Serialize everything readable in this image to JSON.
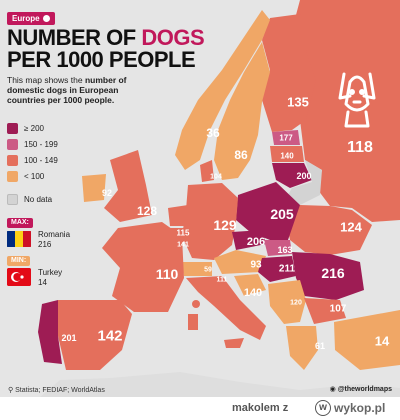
{
  "badge": "Europe",
  "title": {
    "line1_a": "NUMBER OF ",
    "line1_b": "DOGS",
    "line2": "PER 1000 PEOPLE"
  },
  "subtitle": {
    "a": "This map shows the ",
    "b": "number of domestic dogs in European countries per 1000 people."
  },
  "legend": [
    {
      "label": "≥ 200",
      "color": "#9e1c54"
    },
    {
      "label": "150 - 199",
      "color": "#cc5a85"
    },
    {
      "label": "100 - 149",
      "color": "#e46f5c"
    },
    {
      "label": "< 100",
      "color": "#f0a766"
    }
  ],
  "no_data": {
    "label": "No data",
    "color": "#d3d3d3"
  },
  "max": {
    "tag": "MAX:",
    "country": "Romania",
    "value": "216"
  },
  "min": {
    "tag": "MIN:",
    "country": "Turkey",
    "value": "14"
  },
  "values": {
    "norway": "36",
    "sweden": "86",
    "finland": "135",
    "russia": "118",
    "estonia": "177",
    "latvia": "140",
    "lithuania": "200",
    "uk": "128",
    "ireland": "92",
    "denmark": "104",
    "netherlands": "115",
    "belgium": "141",
    "germany": "129",
    "poland": "205",
    "belarus": "124",
    "czechia": "206",
    "slovakia": "163",
    "hungary": "211",
    "romania": "216",
    "france": "110",
    "switzerland": "59",
    "austria": "93",
    "italy": "140",
    "slovenia": "111",
    "spain": "142",
    "portugal": "201",
    "bulgaria": "107",
    "greece": "61",
    "turkey": "14",
    "serbia": "120"
  },
  "source": "Statista; FEDIAF; WorldAtlas",
  "handle": "@theworldmaps",
  "footer": {
    "user": "makolem",
    "z": "z",
    "site": "wykop.pl",
    "logo": "w"
  },
  "colors": {
    "accent": "#c1185b",
    "sea": "#e5e5e5"
  },
  "icons": [
    "dog-icon",
    "search-icon",
    "instagram-icon",
    "wykop-logo-icon"
  ]
}
